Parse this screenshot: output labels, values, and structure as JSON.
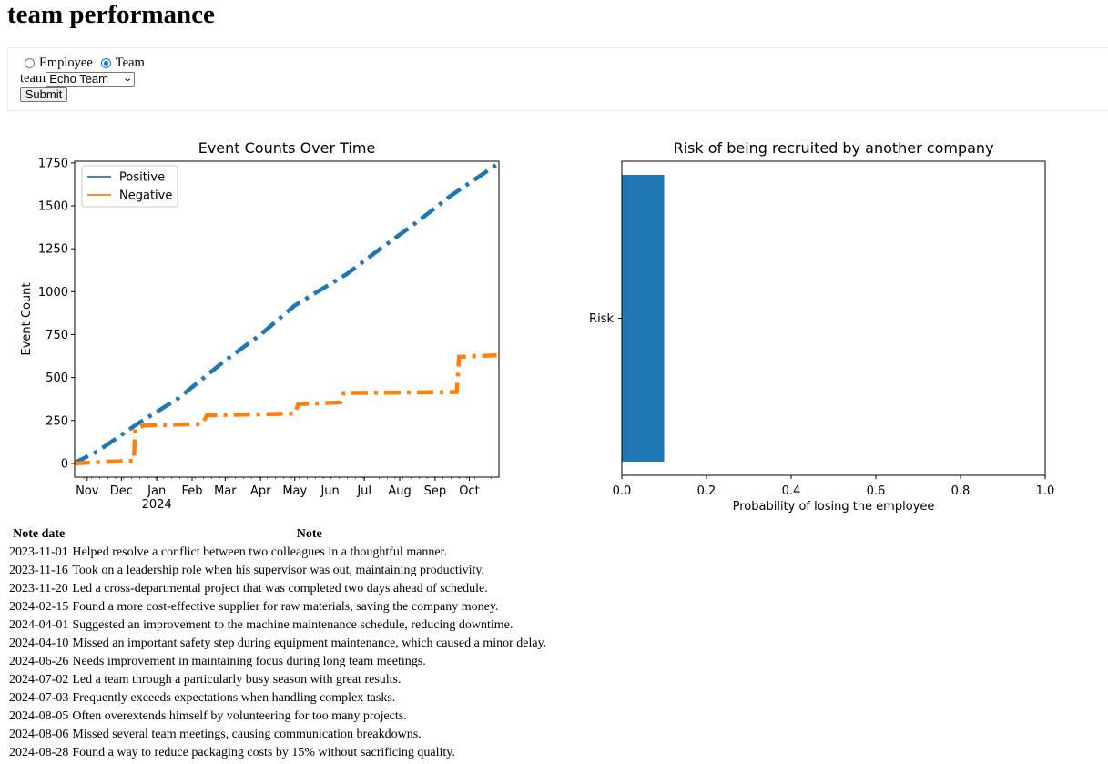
{
  "page": {
    "title": "team performance"
  },
  "form": {
    "radio_employee_label": "Employee",
    "radio_team_label": "Team",
    "selected_mode": "Team",
    "team_label": "team",
    "team_value": "Echo Team",
    "submit_label": "Submit"
  },
  "chart_data": [
    {
      "type": "line",
      "title": "Event Counts Over Time",
      "xlabel": "",
      "ylabel": "Event Count",
      "ylim": [
        -80,
        1760
      ],
      "yticks": [
        "0",
        "250",
        "500",
        "750",
        "1000",
        "1250",
        "1500",
        "1750"
      ],
      "xticks": [
        "Nov",
        "Dec",
        "Jan",
        "Feb",
        "Mar",
        "Apr",
        "May",
        "Jun",
        "Jul",
        "Aug",
        "Sep",
        "Oct"
      ],
      "xticks_year": "2024",
      "legend": "top-left",
      "line_style": "dash-dot",
      "series": [
        {
          "name": "Positive",
          "color": "#1f77b4",
          "x": [
            "2023-10-20",
            "2023-11-10",
            "2023-12-15",
            "2024-01-20",
            "2024-03-01",
            "2024-04-01",
            "2024-05-01",
            "2024-06-15",
            "2024-07-15",
            "2024-08-15",
            "2024-09-15",
            "2024-10-25"
          ],
          "y": [
            0,
            70,
            230,
            380,
            600,
            750,
            920,
            1100,
            1250,
            1400,
            1560,
            1740
          ]
        },
        {
          "name": "Negative",
          "color": "#ff7f0e",
          "x": [
            "2023-10-20",
            "2023-11-20",
            "2023-12-12",
            "2023-12-13",
            "2023-12-20",
            "2024-02-10",
            "2024-02-14",
            "2024-05-01",
            "2024-05-04",
            "2024-06-10",
            "2024-06-13",
            "2024-09-20",
            "2024-09-22",
            "2024-10-25"
          ],
          "y": [
            0,
            10,
            15,
            200,
            220,
            230,
            280,
            290,
            345,
            355,
            410,
            415,
            620,
            630
          ]
        }
      ]
    },
    {
      "type": "bar",
      "orientation": "horizontal",
      "title": "Risk of being recruited by another company",
      "xlabel": "Probability of losing the employee",
      "ylabel": "",
      "categories": [
        "Risk"
      ],
      "values": [
        0.1
      ],
      "xlim": [
        0,
        1
      ],
      "xticks": [
        "0.0",
        "0.2",
        "0.4",
        "0.6",
        "0.8",
        "1.0"
      ],
      "color": "#1f77b4"
    }
  ],
  "notes": {
    "headers": [
      "Note date",
      "Note"
    ],
    "rows": [
      [
        "2023-11-01",
        "Helped resolve a conflict between two colleagues in a thoughtful manner."
      ],
      [
        "2023-11-16",
        "Took on a leadership role when his supervisor was out, maintaining productivity."
      ],
      [
        "2023-11-20",
        "Led a cross-departmental project that was completed two days ahead of schedule."
      ],
      [
        "2024-02-15",
        "Found a more cost-effective supplier for raw materials, saving the company money."
      ],
      [
        "2024-04-01",
        "Suggested an improvement to the machine maintenance schedule, reducing downtime."
      ],
      [
        "2024-04-10",
        "Missed an important safety step during equipment maintenance, which caused a minor delay."
      ],
      [
        "2024-06-26",
        "Needs improvement in maintaining focus during long team meetings."
      ],
      [
        "2024-07-02",
        "Led a team through a particularly busy season with great results."
      ],
      [
        "2024-07-03",
        "Frequently exceeds expectations when handling complex tasks."
      ],
      [
        "2024-08-05",
        "Often overextends himself by volunteering for too many projects."
      ],
      [
        "2024-08-06",
        "Missed several team meetings, causing communication breakdowns."
      ],
      [
        "2024-08-28",
        "Found a way to reduce packaging costs by 15% without sacrificing quality."
      ]
    ]
  }
}
